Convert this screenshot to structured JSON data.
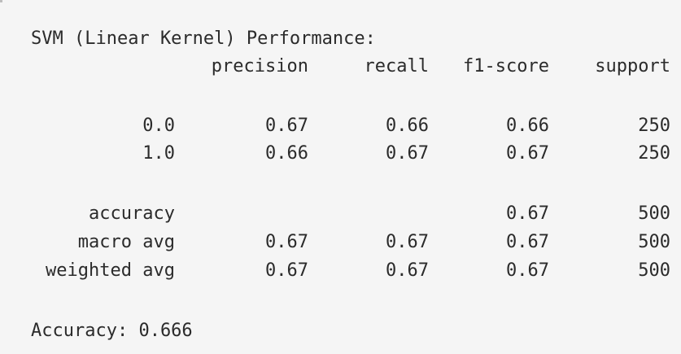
{
  "output": {
    "title": "SVM (Linear Kernel) Performance:",
    "headers": {
      "precision": "precision",
      "recall": "recall",
      "f1": "f1-score",
      "support": "support"
    },
    "rows": [
      {
        "label": "0.0",
        "precision": "0.67",
        "recall": "0.66",
        "f1": "0.66",
        "support": "250"
      },
      {
        "label": "1.0",
        "precision": "0.66",
        "recall": "0.67",
        "f1": "0.67",
        "support": "250"
      }
    ],
    "summary": [
      {
        "label": "accuracy",
        "precision": "",
        "recall": "",
        "f1": "0.67",
        "support": "500"
      },
      {
        "label": "macro avg",
        "precision": "0.67",
        "recall": "0.67",
        "f1": "0.67",
        "support": "500"
      },
      {
        "label": "weighted avg",
        "precision": "0.67",
        "recall": "0.67",
        "f1": "0.67",
        "support": "500"
      }
    ],
    "accuracy_line": "Accuracy: 0.666"
  }
}
